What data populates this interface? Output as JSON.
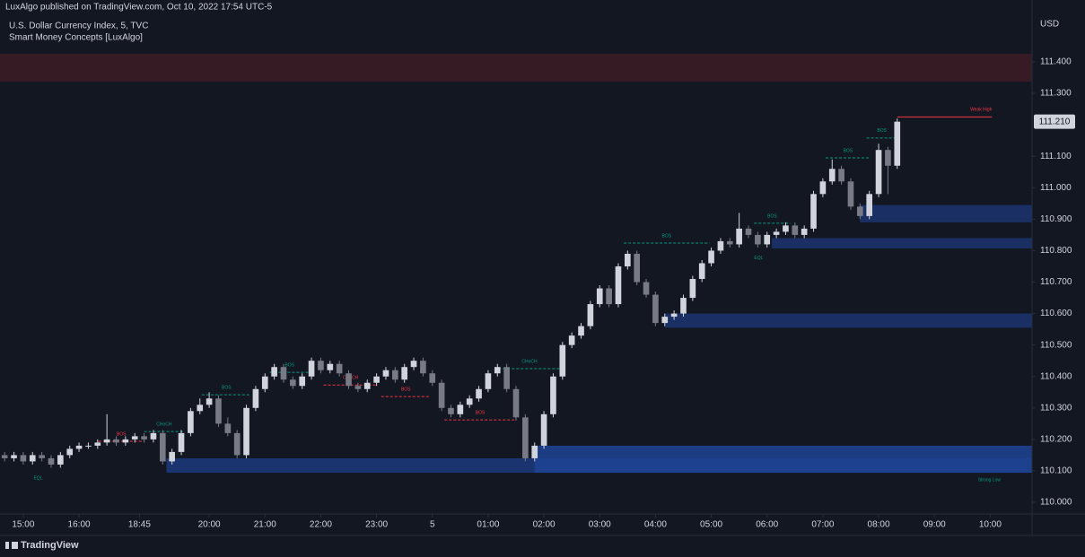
{
  "header": {
    "published": "LuxAlgo published on TradingView.com, Oct 10, 2022 17:54 UTC-5",
    "footer": "TradingView"
  },
  "chart_data": {
    "type": "candlestick",
    "title": "U.S. Dollar Currency Index, 5, TVC",
    "subtitle": "Smart Money Concepts [LuxAlgo]",
    "y_axis_label": "USD",
    "up_color": "#d1d4dc",
    "down_color": "#787b86",
    "grid": false,
    "xlim": [
      -0.5,
      110.5
    ],
    "ylim": [
      109.963,
      111.554
    ],
    "xticks": [
      {
        "value": 2,
        "label": "15:00"
      },
      {
        "value": 8,
        "label": "16:00"
      },
      {
        "value": 14.5,
        "label": "18:45"
      },
      {
        "value": 22,
        "label": "20:00"
      },
      {
        "value": 28,
        "label": "21:00"
      },
      {
        "value": 34,
        "label": "22:00"
      },
      {
        "value": 40,
        "label": "23:00"
      },
      {
        "value": 46,
        "label": "5"
      },
      {
        "value": 52,
        "label": "01:00"
      },
      {
        "value": 58,
        "label": "02:00"
      },
      {
        "value": 64,
        "label": "03:00"
      },
      {
        "value": 70,
        "label": "04:00"
      },
      {
        "value": 76,
        "label": "05:00"
      },
      {
        "value": 82,
        "label": "06:00"
      },
      {
        "value": 88,
        "label": "07:00"
      },
      {
        "value": 94,
        "label": "08:00"
      },
      {
        "value": 100,
        "label": "09:00"
      },
      {
        "value": 106,
        "label": "10:00"
      }
    ],
    "yticks": [
      {
        "value": 110.0,
        "label": "110.000"
      },
      {
        "value": 110.1,
        "label": "110.100"
      },
      {
        "value": 110.2,
        "label": "110.200"
      },
      {
        "value": 110.3,
        "label": "110.300"
      },
      {
        "value": 110.4,
        "label": "110.400"
      },
      {
        "value": 110.5,
        "label": "110.500"
      },
      {
        "value": 110.6,
        "label": "110.600"
      },
      {
        "value": 110.7,
        "label": "110.700"
      },
      {
        "value": 110.8,
        "label": "110.800"
      },
      {
        "value": 110.9,
        "label": "110.900"
      },
      {
        "value": 111.0,
        "label": "111.000"
      },
      {
        "value": 111.1,
        "label": "111.100"
      },
      {
        "value": 111.3,
        "label": "111.300"
      },
      {
        "value": 111.4,
        "label": "111.400"
      }
    ],
    "last_price": {
      "value": 111.21,
      "label": "111.210"
    },
    "ohlc": [
      [
        110.15,
        110.16,
        110.13,
        110.14
      ],
      [
        110.14,
        110.16,
        110.13,
        110.15
      ],
      [
        110.15,
        110.16,
        110.12,
        110.13
      ],
      [
        110.13,
        110.16,
        110.12,
        110.15
      ],
      [
        110.15,
        110.16,
        110.13,
        110.14
      ],
      [
        110.14,
        110.15,
        110.11,
        110.12
      ],
      [
        110.12,
        110.16,
        110.11,
        110.15
      ],
      [
        110.15,
        110.18,
        110.14,
        110.17
      ],
      [
        110.17,
        110.19,
        110.16,
        110.18
      ],
      [
        110.18,
        110.19,
        110.17,
        110.18
      ],
      [
        110.18,
        110.2,
        110.17,
        110.19
      ],
      [
        110.19,
        110.28,
        110.18,
        110.2
      ],
      [
        110.2,
        110.21,
        110.18,
        110.19
      ],
      [
        110.19,
        110.21,
        110.18,
        110.2
      ],
      [
        110.2,
        110.22,
        110.19,
        110.21
      ],
      [
        110.21,
        110.22,
        110.19,
        110.2
      ],
      [
        110.2,
        110.23,
        110.19,
        110.22
      ],
      [
        110.22,
        110.23,
        110.12,
        110.13
      ],
      [
        110.13,
        110.17,
        110.12,
        110.16
      ],
      [
        110.16,
        110.23,
        110.15,
        110.22
      ],
      [
        110.22,
        110.3,
        110.21,
        110.29
      ],
      [
        110.29,
        110.33,
        110.28,
        110.31
      ],
      [
        110.31,
        110.35,
        110.3,
        110.33
      ],
      [
        110.33,
        110.34,
        110.24,
        110.25
      ],
      [
        110.25,
        110.27,
        110.21,
        110.22
      ],
      [
        110.22,
        110.23,
        110.14,
        110.15
      ],
      [
        110.15,
        110.31,
        110.14,
        110.3
      ],
      [
        110.3,
        110.37,
        110.29,
        110.36
      ],
      [
        110.36,
        110.41,
        110.35,
        110.4
      ],
      [
        110.4,
        110.44,
        110.39,
        110.43
      ],
      [
        110.43,
        110.44,
        110.38,
        110.39
      ],
      [
        110.39,
        110.4,
        110.36,
        110.37
      ],
      [
        110.37,
        110.41,
        110.36,
        110.4
      ],
      [
        110.4,
        110.46,
        110.39,
        110.45
      ],
      [
        110.45,
        110.46,
        110.41,
        110.42
      ],
      [
        110.42,
        110.45,
        110.41,
        110.44
      ],
      [
        110.44,
        110.45,
        110.4,
        110.41
      ],
      [
        110.41,
        110.42,
        110.36,
        110.37
      ],
      [
        110.37,
        110.38,
        110.35,
        110.36
      ],
      [
        110.36,
        110.39,
        110.35,
        110.38
      ],
      [
        110.38,
        110.41,
        110.37,
        110.4
      ],
      [
        110.4,
        110.43,
        110.39,
        110.42
      ],
      [
        110.42,
        110.43,
        110.38,
        110.39
      ],
      [
        110.39,
        110.44,
        110.38,
        110.43
      ],
      [
        110.43,
        110.46,
        110.42,
        110.45
      ],
      [
        110.45,
        110.46,
        110.4,
        110.41
      ],
      [
        110.41,
        110.42,
        110.37,
        110.38
      ],
      [
        110.38,
        110.39,
        110.29,
        110.3
      ],
      [
        110.3,
        110.31,
        110.27,
        110.28
      ],
      [
        110.28,
        110.32,
        110.27,
        110.31
      ],
      [
        110.31,
        110.34,
        110.3,
        110.33
      ],
      [
        110.33,
        110.37,
        110.32,
        110.36
      ],
      [
        110.36,
        110.42,
        110.35,
        110.41
      ],
      [
        110.41,
        110.44,
        110.4,
        110.43
      ],
      [
        110.43,
        110.44,
        110.35,
        110.36
      ],
      [
        110.36,
        110.37,
        110.26,
        110.27
      ],
      [
        110.27,
        110.28,
        110.13,
        110.14
      ],
      [
        110.14,
        110.19,
        110.13,
        110.18
      ],
      [
        110.18,
        110.29,
        110.17,
        110.28
      ],
      [
        110.28,
        110.41,
        110.27,
        110.4
      ],
      [
        110.4,
        110.51,
        110.39,
        110.5
      ],
      [
        110.5,
        110.54,
        110.49,
        110.53
      ],
      [
        110.53,
        110.57,
        110.52,
        110.56
      ],
      [
        110.56,
        110.64,
        110.55,
        110.63
      ],
      [
        110.63,
        110.69,
        110.62,
        110.68
      ],
      [
        110.68,
        110.69,
        110.62,
        110.63
      ],
      [
        110.63,
        110.76,
        110.62,
        110.75
      ],
      [
        110.75,
        110.8,
        110.74,
        110.79
      ],
      [
        110.79,
        110.8,
        110.69,
        110.7
      ],
      [
        110.7,
        110.71,
        110.65,
        110.66
      ],
      [
        110.66,
        110.67,
        110.56,
        110.57
      ],
      [
        110.57,
        110.6,
        110.56,
        110.59
      ],
      [
        110.59,
        110.61,
        110.58,
        110.6
      ],
      [
        110.6,
        110.66,
        110.59,
        110.65
      ],
      [
        110.65,
        110.72,
        110.64,
        110.71
      ],
      [
        110.71,
        110.77,
        110.7,
        110.76
      ],
      [
        110.76,
        110.81,
        110.75,
        110.8
      ],
      [
        110.8,
        110.84,
        110.79,
        110.83
      ],
      [
        110.83,
        110.84,
        110.81,
        110.82
      ],
      [
        110.82,
        110.92,
        110.81,
        110.87
      ],
      [
        110.87,
        110.88,
        110.84,
        110.85
      ],
      [
        110.85,
        110.86,
        110.81,
        110.82
      ],
      [
        110.82,
        110.86,
        110.81,
        110.85
      ],
      [
        110.85,
        110.87,
        110.84,
        110.86
      ],
      [
        110.86,
        110.89,
        110.85,
        110.88
      ],
      [
        110.88,
        110.89,
        110.84,
        110.85
      ],
      [
        110.85,
        110.88,
        110.84,
        110.87
      ],
      [
        110.87,
        110.99,
        110.86,
        110.98
      ],
      [
        110.98,
        111.03,
        110.97,
        111.02
      ],
      [
        111.02,
        111.09,
        111.01,
        111.06
      ],
      [
        111.06,
        111.07,
        111.01,
        111.02
      ],
      [
        111.02,
        111.03,
        110.93,
        110.94
      ],
      [
        110.94,
        110.95,
        110.9,
        110.91
      ],
      [
        110.91,
        110.99,
        110.9,
        110.98
      ],
      [
        110.98,
        111.14,
        110.97,
        111.12
      ],
      [
        111.12,
        111.13,
        110.98,
        111.07
      ],
      [
        111.07,
        111.22,
        111.06,
        111.21
      ]
    ],
    "zones": [
      {
        "x": [
          -0.5,
          110.5
        ],
        "y": [
          111.337,
          111.426
        ],
        "color": "#3d1c26"
      },
      {
        "x": [
          17.4,
          110.5
        ],
        "y": [
          110.094,
          110.14
        ],
        "color": "#1c3a7e"
      },
      {
        "x": [
          57.0,
          110.5
        ],
        "y": [
          110.094,
          110.18
        ],
        "color": "#1e4394"
      },
      {
        "x": [
          71.0,
          110.5
        ],
        "y": [
          110.555,
          110.6
        ],
        "color": "#1c3470"
      },
      {
        "x": [
          82.5,
          110.5
        ],
        "y": [
          110.807,
          110.84
        ],
        "color": "#1c3470"
      },
      {
        "x": [
          92.0,
          110.5
        ],
        "y": [
          110.89,
          110.945
        ],
        "color": "#1c3470"
      }
    ],
    "structures": [
      {
        "label": "BOS",
        "x": [
          10.1,
          15.0
        ],
        "y": 110.194,
        "color": "#f23645"
      },
      {
        "label": "CHoCH",
        "x": [
          15.0,
          19.3
        ],
        "y": 110.225,
        "color": "#089981"
      },
      {
        "label": "BOS",
        "x": [
          21.2,
          26.5
        ],
        "y": 110.342,
        "color": "#089981"
      },
      {
        "label": "BOS",
        "x": [
          28.5,
          32.8
        ],
        "y": 110.413,
        "color": "#089981"
      },
      {
        "label": "CHoCH",
        "x": [
          34.3,
          40.1
        ],
        "y": 110.373,
        "color": "#f23645"
      },
      {
        "label": "BOS",
        "x": [
          40.5,
          45.8
        ],
        "y": 110.336,
        "color": "#f23645"
      },
      {
        "label": "BOS",
        "x": [
          47.3,
          55.0
        ],
        "y": 110.262,
        "color": "#f23645"
      },
      {
        "label": "CHoCH",
        "x": [
          53.1,
          59.8
        ],
        "y": 110.425,
        "color": "#089981"
      },
      {
        "label": "BOS",
        "x": [
          66.6,
          75.8
        ],
        "y": 110.824,
        "color": "#089981"
      },
      {
        "label": "BOS",
        "x": [
          80.6,
          84.5
        ],
        "y": 110.887,
        "color": "#089981"
      },
      {
        "label": "BOS",
        "x": [
          88.3,
          93.1
        ],
        "y": 111.095,
        "color": "#089981"
      },
      {
        "label": "BOS",
        "x": [
          92.7,
          96.0
        ],
        "y": 111.158,
        "color": "#089981"
      },
      {
        "label": "Weak High",
        "x": [
          96.0,
          106.2
        ],
        "y": 111.225,
        "color": "#f23645"
      }
    ],
    "labels": [
      {
        "text": "EQL",
        "x": 3.6,
        "y": 110.077,
        "color": "#089981"
      },
      {
        "text": "EQL",
        "x": 81.1,
        "y": 110.776,
        "color": "#089981"
      },
      {
        "text": "Strong Low",
        "x": 105.9,
        "y": 110.071,
        "color": "#089981"
      }
    ]
  }
}
